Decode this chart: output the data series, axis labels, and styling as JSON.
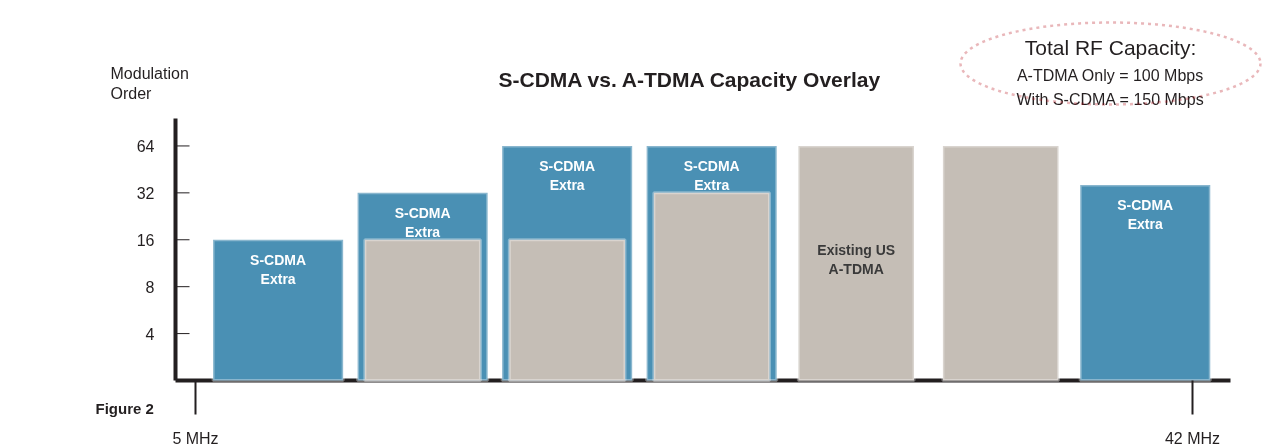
{
  "chart_data": {
    "type": "bar",
    "title": "S-CDMA vs. A-TDMA Capacity Overlay",
    "ylabel": "Modulation Order",
    "log": "y",
    "categories": [
      null,
      null,
      null,
      null,
      null,
      null,
      null
    ],
    "ylim": [
      2,
      96
    ],
    "yticks": [
      4,
      8,
      16,
      32,
      64
    ],
    "tick_labels": "y",
    "series": [
      {
        "color": "#4a90b4",
        "values": [
          16,
          32,
          64,
          64,
          null,
          null,
          36
        ]
      },
      {
        "color": "#c5beb6",
        "values": [
          null,
          16,
          16,
          32,
          64,
          64,
          null
        ]
      }
    ],
    "annotations": [
      "Figure 2",
      "Total RF Capacity:",
      "A-TDMA Only = 100 Mbps",
      "With S-CDMA = 150 Mbps",
      "5 MHz",
      "42 MHz",
      "S-CDMA Extra",
      "S-CDMA Extra",
      "S-CDMA Extra",
      "S-CDMA Extra",
      "S-CDMA Extra",
      "Existing US A-TDMA"
    ]
  }
}
